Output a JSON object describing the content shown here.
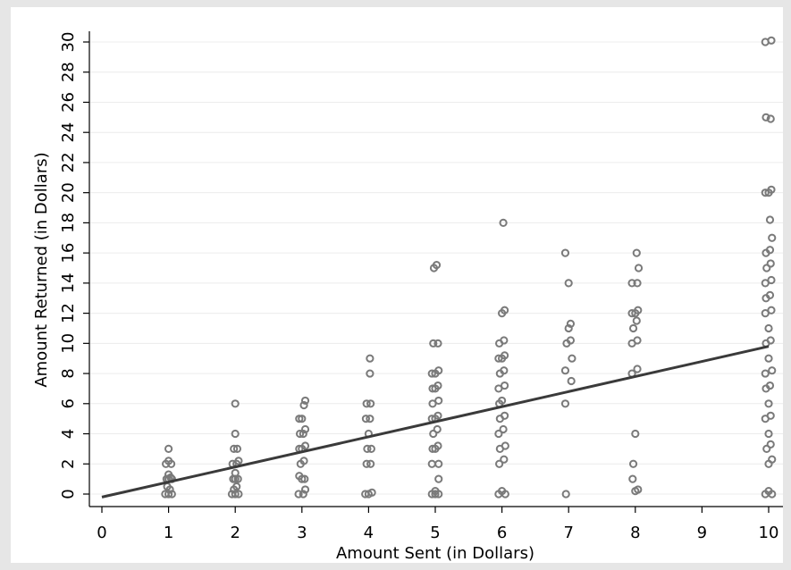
{
  "chart_data": {
    "type": "scatter",
    "xlabel": "Amount Sent (in Dollars)",
    "ylabel": "Amount Returned (in Dollars)",
    "xlim": [
      0,
      10
    ],
    "ylim": [
      0,
      30
    ],
    "x_ticks": [
      0,
      1,
      2,
      3,
      4,
      5,
      6,
      7,
      8,
      9,
      10
    ],
    "y_ticks": [
      0,
      2,
      4,
      6,
      8,
      10,
      12,
      14,
      16,
      18,
      20,
      22,
      24,
      26,
      28,
      30
    ],
    "grid": true,
    "colors": {
      "points": "#7a7a7a",
      "fit_line": "#3a3a3a",
      "plot_background": "#ffffff",
      "figure_background": "#e6e6e6"
    },
    "series": [
      {
        "type": "scatter",
        "points": [
          [
            0.95,
            0
          ],
          [
            1.0,
            0
          ],
          [
            1.05,
            0
          ],
          [
            1.02,
            0.3
          ],
          [
            0.98,
            0.5
          ],
          [
            1.0,
            1
          ],
          [
            1.05,
            1
          ],
          [
            0.97,
            1
          ],
          [
            1.03,
            1.1
          ],
          [
            1.0,
            1.3
          ],
          [
            0.96,
            2
          ],
          [
            1.04,
            2
          ],
          [
            1.0,
            2.2
          ],
          [
            1.0,
            3
          ],
          [
            1.95,
            0
          ],
          [
            2.0,
            0
          ],
          [
            2.05,
            0
          ],
          [
            1.98,
            0.3
          ],
          [
            2.02,
            0.5
          ],
          [
            2.0,
            1
          ],
          [
            1.97,
            1
          ],
          [
            2.04,
            1
          ],
          [
            2.0,
            1.4
          ],
          [
            1.96,
            2
          ],
          [
            2.02,
            2
          ],
          [
            2.05,
            2.2
          ],
          [
            1.98,
            3
          ],
          [
            2.03,
            3
          ],
          [
            2.0,
            4
          ],
          [
            2.0,
            6
          ],
          [
            2.95,
            0
          ],
          [
            3.02,
            0
          ],
          [
            3.05,
            0.3
          ],
          [
            3.0,
            1
          ],
          [
            2.96,
            1.2
          ],
          [
            3.04,
            1
          ],
          [
            2.98,
            2
          ],
          [
            3.03,
            2.2
          ],
          [
            2.96,
            3
          ],
          [
            3.0,
            3
          ],
          [
            3.05,
            3.2
          ],
          [
            2.97,
            4
          ],
          [
            3.02,
            4
          ],
          [
            3.05,
            4.3
          ],
          [
            3.0,
            5
          ],
          [
            2.96,
            5
          ],
          [
            3.03,
            5.9
          ],
          [
            3.05,
            6.2
          ],
          [
            3.95,
            0
          ],
          [
            4.0,
            0
          ],
          [
            4.05,
            0.1
          ],
          [
            3.97,
            2
          ],
          [
            4.03,
            2
          ],
          [
            3.98,
            3
          ],
          [
            4.04,
            3
          ],
          [
            4.0,
            4
          ],
          [
            3.96,
            5
          ],
          [
            4.02,
            5
          ],
          [
            3.97,
            6
          ],
          [
            4.03,
            6
          ],
          [
            4.02,
            8
          ],
          [
            4.02,
            9
          ],
          [
            4.95,
            0
          ],
          [
            5.0,
            0
          ],
          [
            5.05,
            0
          ],
          [
            5.0,
            0.2
          ],
          [
            5.05,
            1
          ],
          [
            4.95,
            2
          ],
          [
            5.05,
            2
          ],
          [
            4.96,
            3
          ],
          [
            5.0,
            3
          ],
          [
            5.04,
            3.2
          ],
          [
            4.97,
            4
          ],
          [
            5.03,
            4.3
          ],
          [
            4.95,
            5
          ],
          [
            5.0,
            5
          ],
          [
            5.04,
            5.2
          ],
          [
            4.96,
            6
          ],
          [
            5.05,
            6.2
          ],
          [
            4.96,
            7
          ],
          [
            5.0,
            7
          ],
          [
            5.04,
            7.2
          ],
          [
            4.95,
            8
          ],
          [
            5.0,
            8
          ],
          [
            5.05,
            8.2
          ],
          [
            4.97,
            10
          ],
          [
            5.04,
            10
          ],
          [
            4.98,
            15
          ],
          [
            5.02,
            15.2
          ],
          [
            5.95,
            0
          ],
          [
            6.0,
            0.2
          ],
          [
            6.05,
            0
          ],
          [
            5.96,
            2
          ],
          [
            6.03,
            2.3
          ],
          [
            5.97,
            3
          ],
          [
            6.05,
            3.2
          ],
          [
            5.95,
            4
          ],
          [
            6.02,
            4.3
          ],
          [
            5.97,
            5
          ],
          [
            6.04,
            5.2
          ],
          [
            5.96,
            6
          ],
          [
            6.0,
            6.2
          ],
          [
            5.95,
            7
          ],
          [
            6.04,
            7.2
          ],
          [
            5.97,
            8
          ],
          [
            6.03,
            8.2
          ],
          [
            5.95,
            9
          ],
          [
            6.0,
            9
          ],
          [
            6.04,
            9.2
          ],
          [
            5.96,
            10
          ],
          [
            6.03,
            10.2
          ],
          [
            6.0,
            12
          ],
          [
            6.04,
            12.2
          ],
          [
            6.02,
            18
          ],
          [
            6.96,
            0
          ],
          [
            6.95,
            6
          ],
          [
            7.04,
            7.5
          ],
          [
            6.95,
            8.2
          ],
          [
            7.05,
            9
          ],
          [
            6.97,
            10
          ],
          [
            7.03,
            10.2
          ],
          [
            7.0,
            11
          ],
          [
            7.03,
            11.3
          ],
          [
            7.0,
            14
          ],
          [
            6.95,
            16
          ],
          [
            8.0,
            0.2
          ],
          [
            8.04,
            0.3
          ],
          [
            7.96,
            1
          ],
          [
            7.97,
            2
          ],
          [
            8.0,
            4
          ],
          [
            7.95,
            8
          ],
          [
            8.03,
            8.3
          ],
          [
            7.95,
            10
          ],
          [
            8.03,
            10.2
          ],
          [
            7.97,
            11
          ],
          [
            8.02,
            11.5
          ],
          [
            7.95,
            12
          ],
          [
            8.0,
            12
          ],
          [
            8.04,
            12.2
          ],
          [
            7.95,
            14
          ],
          [
            8.03,
            14
          ],
          [
            8.05,
            15
          ],
          [
            8.02,
            16
          ],
          [
            9.95,
            0
          ],
          [
            10.0,
            0.2
          ],
          [
            10.05,
            0
          ],
          [
            10.0,
            2
          ],
          [
            10.05,
            2.3
          ],
          [
            9.97,
            3
          ],
          [
            10.03,
            3.3
          ],
          [
            10.0,
            4
          ],
          [
            9.95,
            5
          ],
          [
            10.03,
            5.2
          ],
          [
            10.0,
            6
          ],
          [
            9.96,
            7
          ],
          [
            10.02,
            7.2
          ],
          [
            9.95,
            8
          ],
          [
            10.05,
            8.2
          ],
          [
            10.0,
            9
          ],
          [
            9.96,
            10
          ],
          [
            10.03,
            10.2
          ],
          [
            10.0,
            11
          ],
          [
            9.95,
            12
          ],
          [
            10.04,
            12.2
          ],
          [
            9.96,
            13
          ],
          [
            10.02,
            13.2
          ],
          [
            9.95,
            14
          ],
          [
            10.04,
            14.2
          ],
          [
            9.97,
            15
          ],
          [
            10.03,
            15.3
          ],
          [
            9.96,
            16
          ],
          [
            10.02,
            16.2
          ],
          [
            10.05,
            17
          ],
          [
            10.02,
            18.2
          ],
          [
            9.95,
            20
          ],
          [
            10.0,
            20
          ],
          [
            10.04,
            20.2
          ],
          [
            9.96,
            25
          ],
          [
            10.03,
            24.9
          ],
          [
            9.95,
            30
          ],
          [
            10.04,
            30.1
          ]
        ]
      },
      {
        "type": "line",
        "points": [
          [
            0,
            -0.2
          ],
          [
            10,
            9.8
          ]
        ]
      }
    ]
  }
}
